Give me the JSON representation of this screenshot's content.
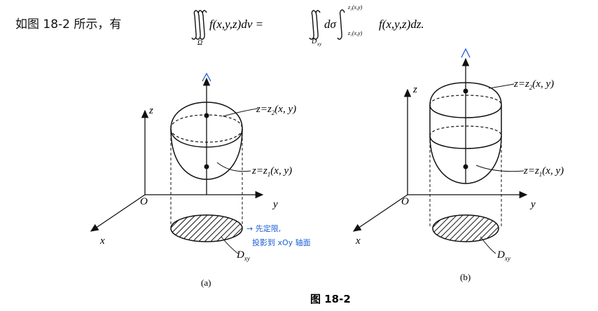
{
  "intro_text": "如图 18-2 所示，有",
  "formula": {
    "lhs": "f(x,y,z)dv =",
    "region": "Ω",
    "mid": "dσ",
    "inner_region": "D",
    "inner_region_sub": "xy",
    "upper_limit": "z₂(x,y)",
    "lower_limit": "z₁(x,y)",
    "rhs": "f(x,y,z)dz."
  },
  "panel_a": {
    "axis_z": "z",
    "axis_y": "y",
    "axis_x": "x",
    "origin": "O",
    "upper_surface": "z=z",
    "upper_surface_sub": "2",
    "upper_surface_tail": "(x, y)",
    "lower_surface": "z=z",
    "lower_surface_sub": "1",
    "lower_surface_tail": "(x, y)",
    "region_label": "D",
    "region_sub": "xy",
    "caption": "(a)",
    "note_line1": "→ 先定限,",
    "note_line2": "投影到 xOy 轴面"
  },
  "panel_b": {
    "axis_z": "z",
    "axis_y": "y",
    "axis_x": "x",
    "origin": "O",
    "upper_surface": "z=z",
    "upper_surface_sub": "2",
    "upper_surface_tail": "(x, y)",
    "lower_surface": "z=z",
    "lower_surface_sub": "1",
    "lower_surface_tail": "(x, y)",
    "region_label": "D",
    "region_sub": "xy",
    "caption": "(b)"
  },
  "figure_caption": "图 18-2",
  "colors": {
    "ink": "#111111",
    "annotation": "#1a5fd6"
  }
}
